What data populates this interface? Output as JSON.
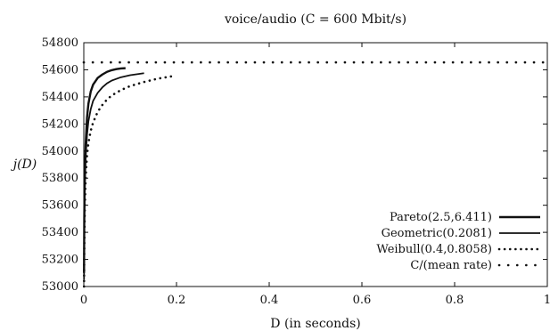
{
  "chart_data": {
    "type": "line",
    "title": "voice/audio (C = 600 Mbit/s)",
    "xlabel": "D (in seconds)",
    "ylabel": "j(D)",
    "xlim": [
      0,
      1
    ],
    "ylim": [
      53000,
      54800
    ],
    "x_ticks": [
      "0",
      "0.2",
      "0.4",
      "0.6",
      "0.8",
      "1"
    ],
    "y_ticks": [
      "53000",
      "53200",
      "53400",
      "53600",
      "53800",
      "54000",
      "54200",
      "54400",
      "54600",
      "54800"
    ],
    "grid": false,
    "legend_position": "bottom-right",
    "series": [
      {
        "name": "Pareto(2.5,6.411)",
        "style": "solid-thick",
        "x": [
          0.0005,
          0.001,
          0.002,
          0.004,
          0.007,
          0.01,
          0.015,
          0.02,
          0.03,
          0.04,
          0.05,
          0.06,
          0.07,
          0.08,
          0.09
        ],
        "y": [
          53100,
          53500,
          53800,
          54050,
          54250,
          54350,
          54440,
          54490,
          54540,
          54565,
          54585,
          54597,
          54605,
          54610,
          54612
        ]
      },
      {
        "name": "Geometric(0.2081)",
        "style": "solid",
        "x": [
          0.0005,
          0.001,
          0.002,
          0.004,
          0.007,
          0.01,
          0.015,
          0.02,
          0.03,
          0.04,
          0.05,
          0.06,
          0.08,
          0.1,
          0.12,
          0.13
        ],
        "y": [
          53050,
          53400,
          53700,
          53950,
          54120,
          54220,
          54310,
          54370,
          54430,
          54470,
          54500,
          54520,
          54545,
          54560,
          54570,
          54575
        ]
      },
      {
        "name": "Weibull(0.4,0.8058)",
        "style": "dotted",
        "x": [
          0.0005,
          0.001,
          0.002,
          0.004,
          0.007,
          0.01,
          0.015,
          0.02,
          0.03,
          0.04,
          0.05,
          0.06,
          0.08,
          0.1,
          0.13,
          0.16,
          0.19
        ],
        "y": [
          53000,
          53250,
          53550,
          53800,
          53970,
          54060,
          54150,
          54210,
          54290,
          54340,
          54380,
          54410,
          54450,
          54480,
          54510,
          54535,
          54552
        ]
      },
      {
        "name": "C/(mean rate)",
        "style": "dotted-sparse",
        "x": [
          0,
          1
        ],
        "y": [
          54655,
          54655
        ]
      }
    ]
  }
}
